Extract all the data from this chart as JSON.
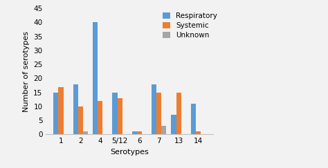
{
  "categories": [
    "1",
    "2",
    "4",
    "5/12",
    "6",
    "7",
    "13",
    "14"
  ],
  "respiratory": [
    15,
    18,
    40,
    15,
    1,
    18,
    7,
    11
  ],
  "systemic": [
    17,
    10,
    12,
    13,
    1,
    15,
    15,
    1
  ],
  "unknown": [
    0,
    1,
    0,
    0,
    0,
    3,
    0,
    0
  ],
  "respiratory_color": "#5B9BD5",
  "systemic_color": "#ED7D31",
  "unknown_color": "#A5A5A5",
  "xlabel": "Serotypes",
  "ylabel": "Number of serotypes",
  "ylim": [
    0,
    45
  ],
  "yticks": [
    0,
    5,
    10,
    15,
    20,
    25,
    30,
    35,
    40,
    45
  ],
  "legend_labels": [
    "Respiratory",
    "Systemic",
    "Unknown"
  ],
  "bar_width": 0.25,
  "axis_fontsize": 8,
  "tick_fontsize": 7.5,
  "legend_fontsize": 7.5,
  "background_color": "#F2F2F2"
}
